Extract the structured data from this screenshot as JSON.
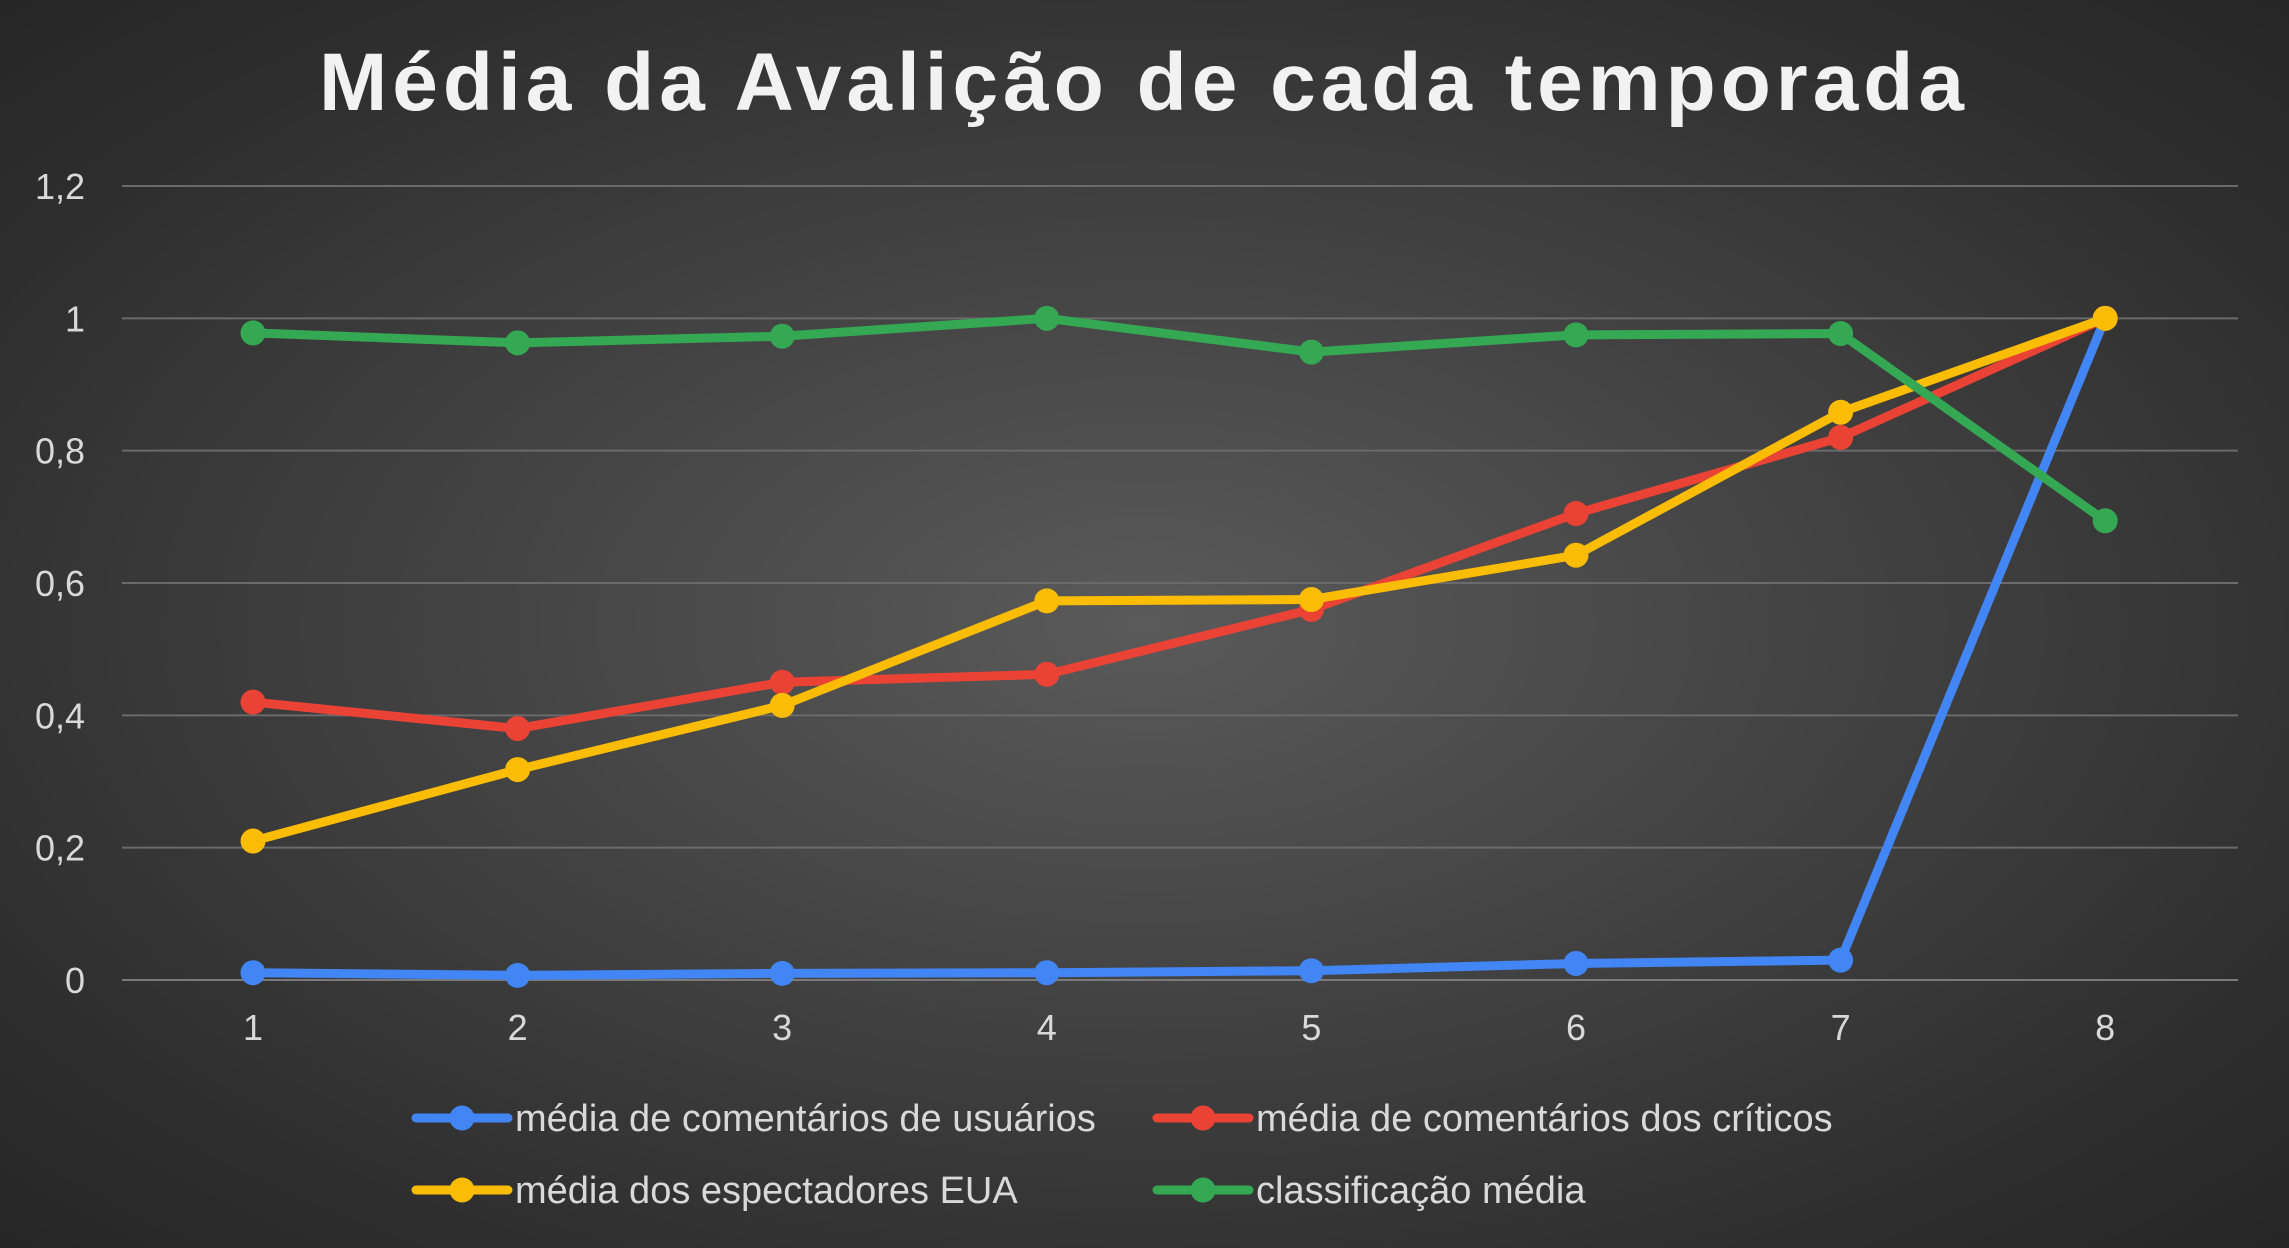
{
  "chart_data": {
    "type": "line",
    "title": "Média da Avalição de cada temporada",
    "xlabel": "",
    "ylabel": "",
    "categories": [
      "1",
      "2",
      "3",
      "4",
      "5",
      "6",
      "7",
      "8"
    ],
    "y_ticks": [
      "0",
      "0,2",
      "0,4",
      "0,6",
      "0,8",
      "1",
      "1,2"
    ],
    "ylim": [
      0,
      1.2
    ],
    "grid": true,
    "legend_position": "bottom",
    "series": [
      {
        "name": "média de comentários de usuários",
        "color": "#4285f4",
        "values": [
          0.011,
          0.007,
          0.01,
          0.011,
          0.014,
          0.025,
          0.03,
          1.0
        ]
      },
      {
        "name": "média de comentários dos críticos",
        "color": "#ea4335",
        "values": [
          0.42,
          0.38,
          0.45,
          0.462,
          0.56,
          0.705,
          0.82,
          1.0
        ]
      },
      {
        "name": "média dos espectadores EUA",
        "color": "#fbbc04",
        "values": [
          0.21,
          0.318,
          0.415,
          0.573,
          0.575,
          0.642,
          0.858,
          1.0
        ]
      },
      {
        "name": "classificação média",
        "color": "#34a853",
        "values": [
          0.978,
          0.963,
          0.973,
          1.0,
          0.949,
          0.975,
          0.977,
          0.694
        ]
      }
    ]
  }
}
